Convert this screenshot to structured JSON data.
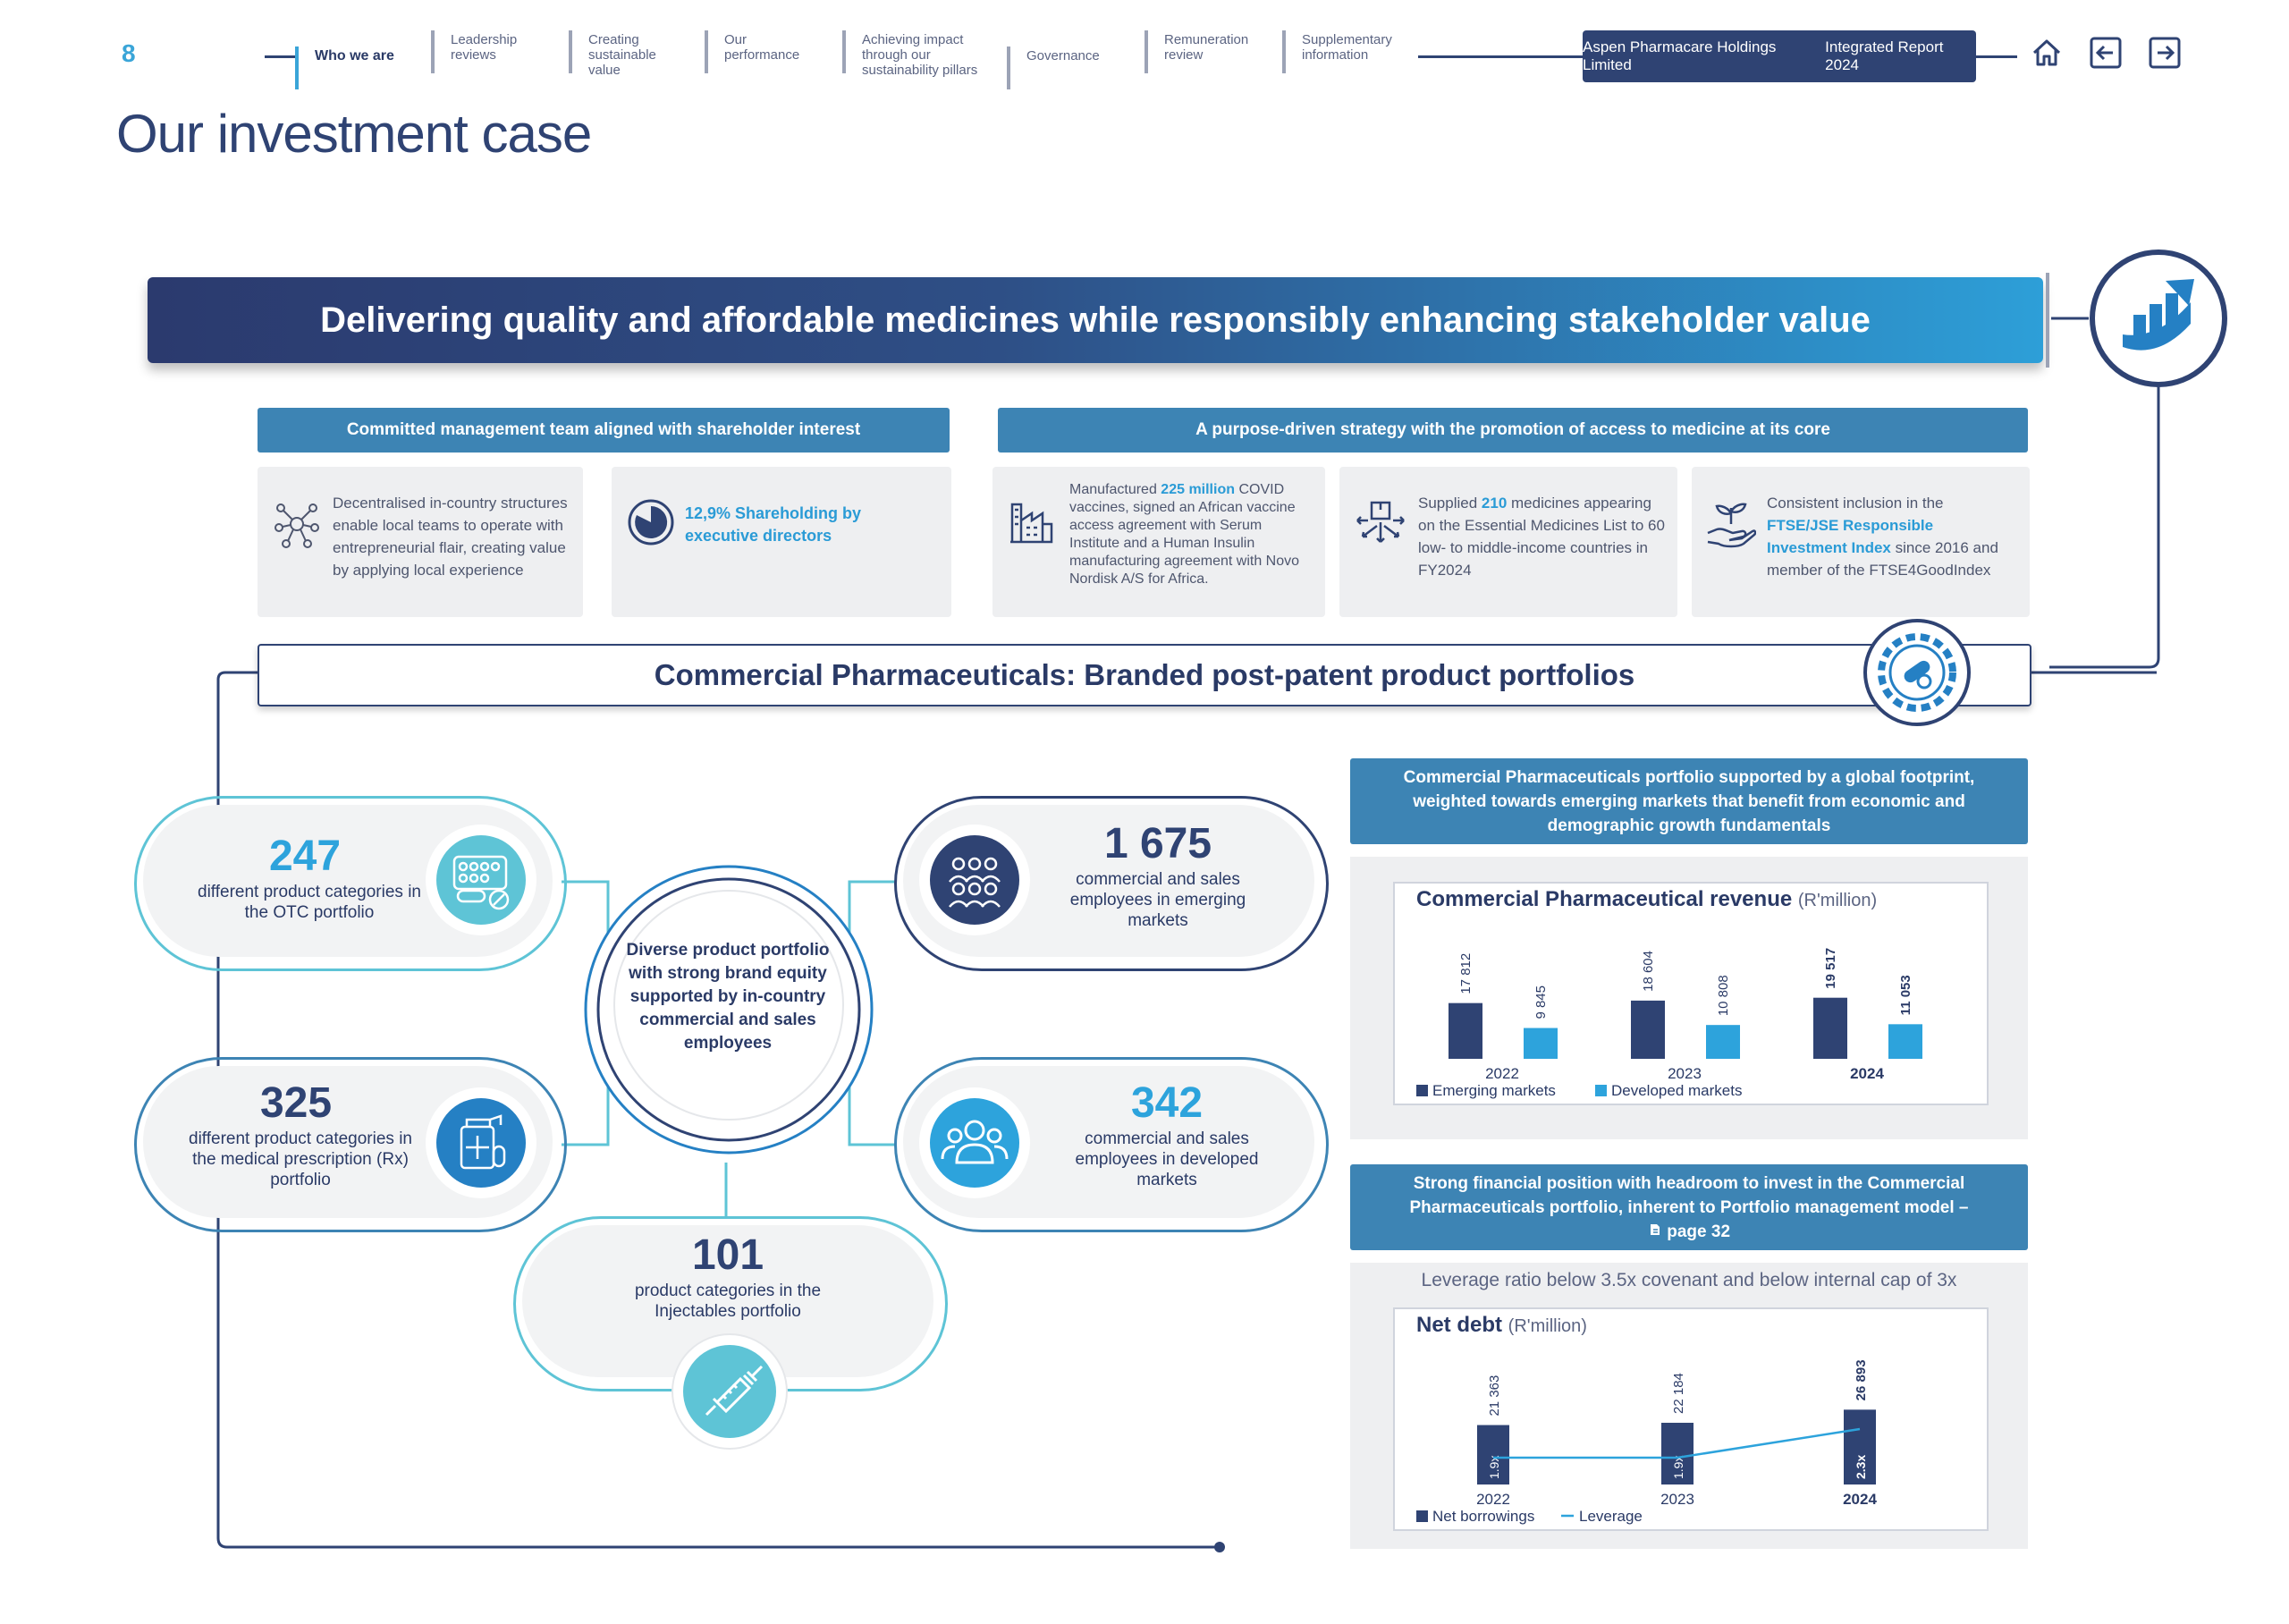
{
  "page_number": "8",
  "nav": {
    "items": [
      {
        "label": "Who we are"
      },
      {
        "label": "Leadership reviews"
      },
      {
        "label": "Creating sustainable value"
      },
      {
        "label": "Our performance"
      },
      {
        "label": "Achieving impact through our sustainability pillars"
      },
      {
        "label": "Governance"
      },
      {
        "label": "Remuneration review"
      },
      {
        "label": "Supplementary information"
      }
    ],
    "report_prefix": "Aspen Pharmacare Holdings Limited",
    "report_title": "Integrated Report 2024"
  },
  "title": "Our investment case",
  "banner": "Delivering quality and affordable medicines while responsibly enhancing stakeholder value",
  "sections": {
    "management_header": "Committed management team aligned with shareholder interest",
    "strategy_header": "A purpose-driven strategy with the promotion of access to medicine at its core"
  },
  "cards": {
    "decentralised": "Decentralised in-country structures enable local teams to operate with entrepreneurial flair, creating value by applying local experience",
    "shareholding": "12,9% Shareholding by executive directors",
    "manufactured_pre": "Manufactured",
    "manufactured_hl": "225 million",
    "manufactured_post": "COVID vaccines, signed an African vaccine access agreement with Serum Institute and a Human Insulin manufacturing agreement with Novo Nordisk A/S for Africa.",
    "supplied_pre": "Supplied",
    "supplied_hl": "210",
    "supplied_post": "medicines appearing on the Essential Medicines List to 60 low- to middle-income countries in FY2024",
    "inclusion_pre": "Consistent inclusion in the",
    "inclusion_hl": "FTSE/JSE Responsible Investment Index",
    "inclusion_post": "since 2016 and member of the FTSE4GoodIndex"
  },
  "commercial_bar": "Commercial Pharmaceuticals: Branded post-patent product portfolios",
  "center_text": "Diverse product portfolio with strong brand equity supported by in-country commercial and sales employees",
  "stats": {
    "otc": {
      "value": "247",
      "desc": "different product categories in the OTC portfolio"
    },
    "rx": {
      "value": "325",
      "desc": "different product categories in the medical prescription (Rx) portfolio"
    },
    "injectables": {
      "value": "101",
      "desc": "product categories in the Injectables portfolio"
    },
    "emerging_staff": {
      "value": "1 675",
      "desc": "commercial and sales employees in emerging markets"
    },
    "developed_staff": {
      "value": "342",
      "desc": "commercial and sales employees in developed markets"
    }
  },
  "footprint_header": "Commercial Pharmaceuticals portfolio supported by a global footprint, weighted towards emerging markets that benefit from economic and demographic growth fundamentals",
  "financial_header_l1": "Strong financial position with headroom to invest in the Commercial",
  "financial_header_l2": "Pharmaceuticals portfolio, inherent to Portfolio management model –",
  "financial_header_link": "page 32",
  "leverage_note": "Leverage ratio below 3.5x covenant and below internal cap of 3x",
  "colors": {
    "navy": "#2f4373",
    "blue": "#2da3dc",
    "teal": "#3d84b4",
    "light_teal": "#5ec4d6"
  },
  "chart_data": [
    {
      "type": "bar",
      "title": "Commercial Pharmaceutical revenue",
      "unit": "(R'million)",
      "categories": [
        "2022",
        "2023",
        "2024"
      ],
      "series": [
        {
          "name": "Emerging markets",
          "values": [
            17812,
            18604,
            19517
          ],
          "labels": [
            "17 812",
            "18 604",
            "19 517"
          ],
          "color": "#2f4373"
        },
        {
          "name": "Developed markets",
          "values": [
            9845,
            10808,
            11053
          ],
          "labels": [
            "9 845",
            "10 808",
            "11 053"
          ],
          "color": "#2da3dc"
        }
      ]
    },
    {
      "type": "bar",
      "title": "Net debt",
      "unit": "(R'million)",
      "categories": [
        "2022",
        "2023",
        "2024"
      ],
      "series": [
        {
          "name": "Net borrowings",
          "values": [
            21363,
            22184,
            26893
          ],
          "labels": [
            "21 363",
            "22 184",
            "26 893"
          ],
          "color": "#2f4373"
        },
        {
          "name": "Leverage",
          "type": "line",
          "values": [
            1.9,
            1.9,
            2.3
          ],
          "labels": [
            "1.9x",
            "1.9x",
            "2.3x"
          ],
          "color": "#2da3dc"
        }
      ]
    }
  ]
}
